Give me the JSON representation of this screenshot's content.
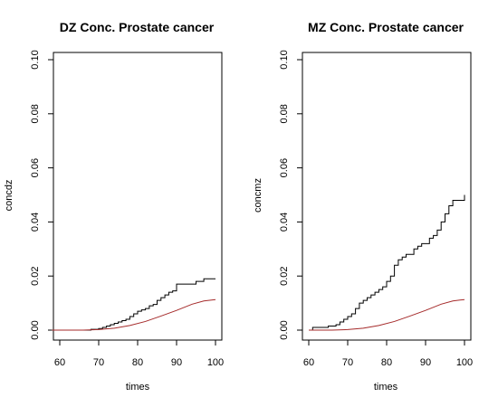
{
  "chart_data": [
    {
      "type": "line",
      "title": "DZ Conc. Prostate cancer",
      "xlabel": "times",
      "ylabel": "concdz",
      "xlim": [
        60,
        100
      ],
      "ylim": [
        0,
        0.1
      ],
      "x_ticks": [
        "60",
        "70",
        "80",
        "90",
        "100"
      ],
      "y_ticks": [
        "0.00",
        "0.02",
        "0.04",
        "0.06",
        "0.08",
        "0.10"
      ],
      "grid": false,
      "series": [
        {
          "style": "step",
          "color": "#000000",
          "x": [
            58,
            66.5,
            68,
            70,
            71,
            72,
            73,
            74,
            75,
            76,
            77,
            78,
            79,
            80,
            81,
            82,
            83,
            84,
            85,
            86,
            87,
            88,
            89,
            90,
            93,
            95,
            97,
            100
          ],
          "y": [
            0.0,
            0.0,
            0.0003,
            0.0006,
            0.001,
            0.0015,
            0.002,
            0.0025,
            0.003,
            0.0035,
            0.004,
            0.005,
            0.006,
            0.007,
            0.0075,
            0.008,
            0.009,
            0.0095,
            0.011,
            0.012,
            0.013,
            0.014,
            0.0145,
            0.017,
            0.017,
            0.018,
            0.019,
            0.019
          ]
        },
        {
          "style": "line",
          "color": "#a52a2a",
          "x": [
            58,
            66,
            70,
            74,
            78,
            82,
            86,
            90,
            94,
            97,
            100
          ],
          "y": [
            0.0,
            0.0,
            0.0002,
            0.0007,
            0.0017,
            0.0032,
            0.0052,
            0.0073,
            0.0096,
            0.0108,
            0.0113
          ]
        }
      ]
    },
    {
      "type": "line",
      "title": "MZ Conc. Prostate cancer",
      "xlabel": "times",
      "ylabel": "concmz",
      "xlim": [
        60,
        100
      ],
      "ylim": [
        0,
        0.1
      ],
      "x_ticks": [
        "60",
        "70",
        "80",
        "90",
        "100"
      ],
      "y_ticks": [
        "0.00",
        "0.02",
        "0.04",
        "0.06",
        "0.08",
        "0.10"
      ],
      "grid": false,
      "series": [
        {
          "style": "step",
          "color": "#000000",
          "x": [
            60,
            61,
            65,
            67,
            68,
            69,
            70,
            71,
            72,
            73,
            74,
            75,
            76,
            77,
            78,
            79,
            80,
            81,
            82,
            83,
            84,
            85,
            86,
            87,
            88,
            89,
            90,
            91,
            92,
            93,
            94,
            95,
            96,
            97,
            100
          ],
          "y": [
            0.0,
            0.001,
            0.0015,
            0.002,
            0.003,
            0.004,
            0.005,
            0.006,
            0.008,
            0.01,
            0.011,
            0.012,
            0.013,
            0.014,
            0.015,
            0.016,
            0.018,
            0.02,
            0.024,
            0.026,
            0.027,
            0.028,
            0.028,
            0.03,
            0.031,
            0.032,
            0.032,
            0.034,
            0.035,
            0.037,
            0.04,
            0.043,
            0.046,
            0.048,
            0.05
          ]
        },
        {
          "style": "line",
          "color": "#a52a2a",
          "x": [
            60,
            66,
            70,
            74,
            78,
            82,
            86,
            90,
            94,
            97,
            100
          ],
          "y": [
            0.0,
            0.0,
            0.0002,
            0.0007,
            0.0017,
            0.0032,
            0.0052,
            0.0073,
            0.0096,
            0.0108,
            0.0113
          ]
        }
      ]
    }
  ]
}
